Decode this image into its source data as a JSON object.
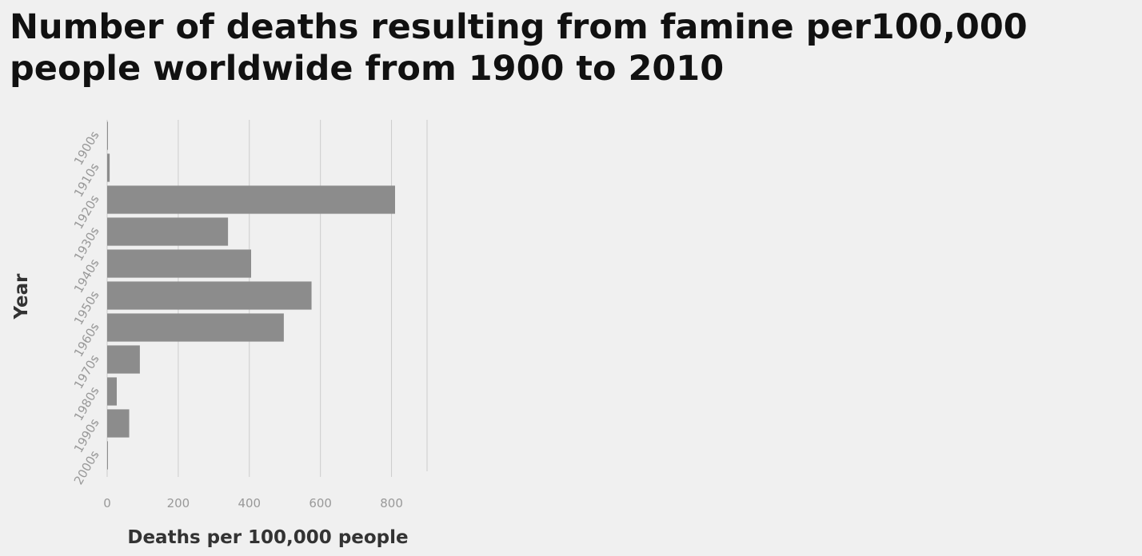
{
  "chart_data": {
    "type": "bar",
    "orientation": "horizontal",
    "title_lines": [
      "Number of deaths resulting from famine per100,000",
      "people worldwide from 1900 to 2010"
    ],
    "xlabel": "Deaths per 100,000 people",
    "ylabel": "Year",
    "categories": [
      "1900s",
      "1910s",
      "1920s",
      "1930s",
      "1940s",
      "1950s",
      "1960s",
      "1970s",
      "1980s",
      "1990s",
      "2000s"
    ],
    "values": [
      0.5,
      7,
      810,
      340,
      405,
      575,
      497,
      92,
      27,
      62,
      0.5
    ],
    "xlim": [
      0,
      900
    ],
    "xticks": [
      0,
      200,
      400,
      600,
      800
    ],
    "grid": true,
    "bar_color": "#8c8c8c"
  }
}
